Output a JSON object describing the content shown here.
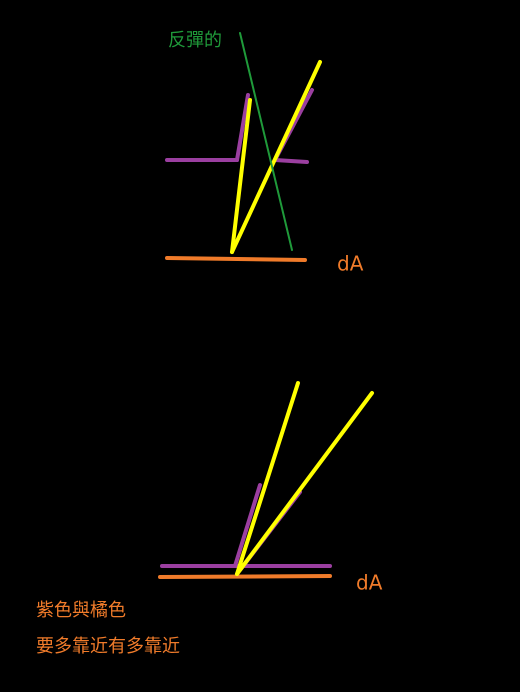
{
  "top": {
    "reflected_label": "反彈的",
    "area_label": "dA"
  },
  "bottom": {
    "area_label": "dA",
    "note": [
      "紫色與橘色",
      "要多靠近有多靠近"
    ]
  }
}
